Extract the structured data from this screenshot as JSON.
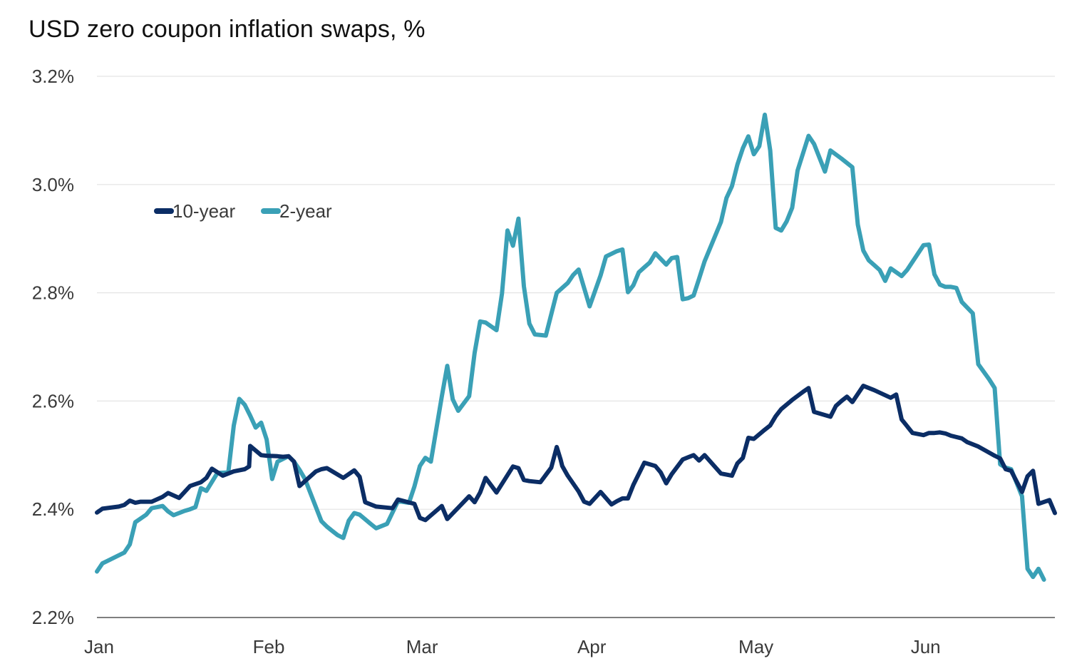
{
  "title": "USD zero coupon inflation swaps, %",
  "colors": {
    "ten_year": "#0b2d65",
    "two_year": "#3aa0b6",
    "grid": "#e4e4e4",
    "axis": "#555555"
  },
  "chart_data": {
    "type": "line",
    "title": "USD zero coupon inflation swaps, %",
    "xlabel": "",
    "ylabel": "",
    "x_ticks": [
      {
        "label": "Jan",
        "x": 0
      },
      {
        "label": "Feb",
        "x": 31
      },
      {
        "label": "Mar",
        "x": 59
      },
      {
        "label": "Apr",
        "x": 90
      },
      {
        "label": "May",
        "x": 120
      },
      {
        "label": "Jun",
        "x": 151
      }
    ],
    "xlim": [
      0,
      175
    ],
    "ylim": [
      2.2,
      3.2
    ],
    "y_ticks": [
      {
        "label": "3.2%",
        "value": 3.2
      },
      {
        "label": "3.0%",
        "value": 3.0
      },
      {
        "label": "2.8%",
        "value": 2.8
      },
      {
        "label": "2.6%",
        "value": 2.6
      },
      {
        "label": "2.4%",
        "value": 2.4
      },
      {
        "label": "2.2%",
        "value": 2.2
      }
    ],
    "grid": "horizontal",
    "legend_position": "top-left",
    "series": [
      {
        "name": "10-year",
        "color_key": "ten_year",
        "x": [
          0,
          1,
          4,
          5,
          6,
          7,
          8,
          10,
          12,
          13,
          15,
          17,
          19,
          20,
          21,
          23,
          25,
          27,
          27.8,
          28,
          30,
          31,
          33,
          34,
          35,
          36,
          37,
          40,
          41,
          42,
          45,
          47,
          48,
          49,
          51,
          54,
          55,
          58,
          59,
          60,
          63,
          64,
          66,
          68,
          69,
          70,
          71,
          73,
          76,
          77,
          78,
          79,
          81,
          83,
          84,
          84.7,
          85,
          86,
          88,
          89,
          90,
          92,
          94,
          95,
          96,
          97,
          98,
          100,
          102,
          103,
          104,
          105,
          107,
          108,
          109,
          110,
          111,
          114,
          115,
          116,
          117,
          118,
          119,
          120,
          122,
          123,
          124,
          125,
          127,
          129,
          130,
          131,
          134,
          135,
          136,
          137,
          138,
          140,
          142,
          145,
          146,
          147,
          149,
          151,
          152,
          153,
          154,
          155,
          156,
          158,
          159,
          161,
          164,
          165,
          166,
          167,
          169,
          170,
          171,
          172,
          174,
          175
        ],
        "values": [
          2.394,
          2.401,
          2.405,
          2.408,
          2.416,
          2.412,
          2.414,
          2.414,
          2.423,
          2.43,
          2.421,
          2.443,
          2.45,
          2.458,
          2.475,
          2.462,
          2.47,
          2.474,
          2.479,
          2.517,
          2.5,
          2.499,
          2.498,
          2.497,
          2.498,
          2.488,
          2.443,
          2.47,
          2.474,
          2.476,
          2.458,
          2.472,
          2.46,
          2.413,
          2.405,
          2.402,
          2.418,
          2.41,
          2.384,
          2.38,
          2.406,
          2.382,
          2.403,
          2.424,
          2.413,
          2.431,
          2.458,
          2.431,
          2.479,
          2.476,
          2.454,
          2.452,
          2.45,
          2.477,
          2.515,
          2.492,
          2.48,
          2.462,
          2.433,
          2.414,
          2.41,
          2.432,
          2.409,
          2.415,
          2.42,
          2.42,
          2.445,
          2.486,
          2.48,
          2.468,
          2.448,
          2.465,
          2.492,
          2.496,
          2.5,
          2.49,
          2.5,
          2.466,
          2.464,
          2.462,
          2.485,
          2.495,
          2.532,
          2.53,
          2.547,
          2.555,
          2.572,
          2.585,
          2.602,
          2.617,
          2.624,
          2.58,
          2.571,
          2.591,
          2.6,
          2.608,
          2.598,
          2.628,
          2.62,
          2.606,
          2.612,
          2.566,
          2.541,
          2.537,
          2.541,
          2.541,
          2.542,
          2.54,
          2.536,
          2.531,
          2.524,
          2.516,
          2.499,
          2.494,
          2.474,
          2.471,
          2.432,
          2.461,
          2.471,
          2.41,
          2.417,
          2.393
        ]
      },
      {
        "name": "2-year",
        "color_key": "two_year",
        "x": [
          0,
          1,
          2,
          5,
          6,
          7,
          9,
          10,
          12,
          13,
          14,
          15,
          16,
          17,
          18,
          19,
          20,
          22,
          24,
          25,
          26,
          27,
          28,
          29,
          30,
          31,
          32,
          33,
          34,
          35,
          36,
          37,
          38,
          41,
          42,
          43,
          44,
          45,
          46,
          47,
          48,
          50,
          51,
          53,
          55,
          57,
          58,
          59,
          60,
          61,
          63,
          64,
          65,
          66,
          68,
          69,
          70,
          71,
          73,
          74,
          75,
          76,
          77,
          78,
          79,
          80,
          82,
          84,
          86,
          87,
          88,
          90,
          92,
          93,
          95,
          96,
          97,
          98,
          99,
          100,
          101,
          102,
          104,
          105,
          106,
          107,
          108,
          109,
          110,
          111,
          114,
          115,
          116,
          117,
          118,
          119,
          120,
          121,
          122,
          123,
          124,
          125,
          126,
          127,
          128,
          130,
          131,
          133,
          134,
          136,
          138,
          139,
          140,
          141,
          142,
          143,
          144,
          145,
          147,
          148,
          151,
          152,
          153,
          154,
          155,
          156,
          157,
          158,
          160,
          161,
          163,
          164,
          165,
          166,
          167,
          169,
          170,
          171,
          172,
          173
        ],
        "values": [
          2.285,
          2.3,
          2.305,
          2.32,
          2.335,
          2.376,
          2.39,
          2.402,
          2.406,
          2.396,
          2.389,
          2.393,
          2.397,
          2.4,
          2.404,
          2.439,
          2.434,
          2.467,
          2.468,
          2.555,
          2.604,
          2.593,
          2.573,
          2.551,
          2.56,
          2.529,
          2.456,
          2.488,
          2.493,
          2.498,
          2.488,
          2.473,
          2.456,
          2.378,
          2.368,
          2.36,
          2.352,
          2.347,
          2.379,
          2.393,
          2.39,
          2.373,
          2.365,
          2.373,
          2.415,
          2.412,
          2.442,
          2.48,
          2.495,
          2.488,
          2.608,
          2.665,
          2.603,
          2.582,
          2.609,
          2.689,
          2.747,
          2.745,
          2.731,
          2.799,
          2.915,
          2.887,
          2.937,
          2.812,
          2.743,
          2.723,
          2.721,
          2.8,
          2.818,
          2.833,
          2.843,
          2.775,
          2.832,
          2.867,
          2.877,
          2.88,
          2.801,
          2.814,
          2.838,
          2.847,
          2.856,
          2.873,
          2.852,
          2.864,
          2.866,
          2.788,
          2.79,
          2.795,
          2.826,
          2.858,
          2.931,
          2.975,
          2.997,
          3.037,
          3.067,
          3.089,
          3.056,
          3.071,
          3.129,
          3.063,
          2.92,
          2.915,
          2.932,
          2.957,
          3.026,
          3.09,
          3.075,
          3.024,
          3.063,
          3.048,
          3.032,
          2.926,
          2.878,
          2.86,
          2.851,
          2.842,
          2.822,
          2.845,
          2.831,
          2.842,
          2.888,
          2.889,
          2.834,
          2.815,
          2.811,
          2.811,
          2.809,
          2.783,
          2.762,
          2.668,
          2.64,
          2.624,
          2.483,
          2.477,
          2.474,
          2.424,
          2.29,
          2.275,
          2.29,
          2.27
        ]
      }
    ]
  }
}
